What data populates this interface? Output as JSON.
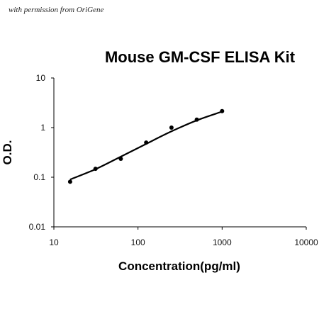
{
  "watermark": "with permission from OriGene",
  "chart_data": {
    "type": "scatter",
    "title": "Mouse GM-CSF ELISA Kit",
    "xlabel": "Concentration(pg/ml)",
    "ylabel": "O.D.",
    "xscale": "log",
    "yscale": "log",
    "xlim": [
      10,
      10000
    ],
    "ylim": [
      0.01,
      10
    ],
    "x_ticks": [
      "10",
      "100",
      "1000",
      "10000"
    ],
    "y_ticks": [
      "0.01",
      "0.1",
      "1",
      "10"
    ],
    "grid": false,
    "legend": "none",
    "series": [
      {
        "points": [
          {
            "x": 15.6,
            "y": 0.081
          },
          {
            "x": 31.25,
            "y": 0.148
          },
          {
            "x": 62.5,
            "y": 0.235
          },
          {
            "x": 125,
            "y": 0.5
          },
          {
            "x": 250,
            "y": 1.0
          },
          {
            "x": 500,
            "y": 1.45
          },
          {
            "x": 1000,
            "y": 2.15
          }
        ],
        "fit_curve": [
          {
            "x": 15.6,
            "y": 0.09
          },
          {
            "x": 31.25,
            "y": 0.145
          },
          {
            "x": 62.5,
            "y": 0.26
          },
          {
            "x": 125,
            "y": 0.47
          },
          {
            "x": 250,
            "y": 0.84
          },
          {
            "x": 500,
            "y": 1.4
          },
          {
            "x": 1000,
            "y": 2.1
          }
        ]
      }
    ]
  }
}
